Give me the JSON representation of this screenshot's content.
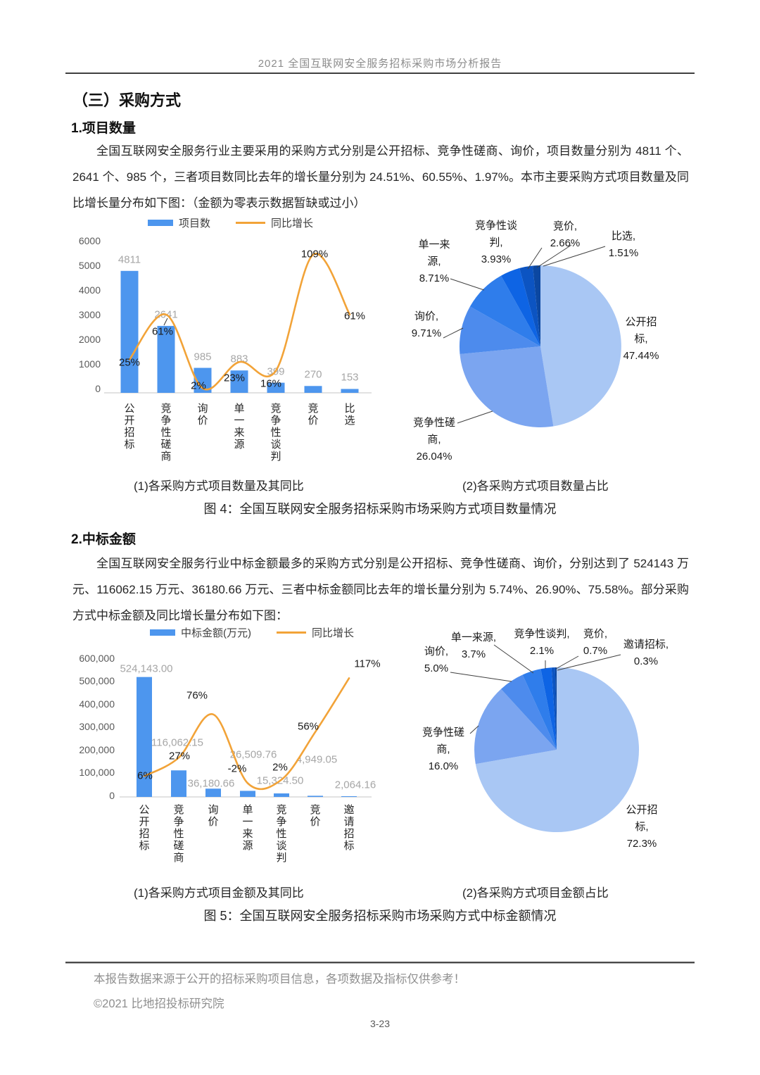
{
  "page": {
    "header_title": "2021 全国互联网安全服务招标采购市场分析报告",
    "footer_note": "本报告数据来源于公开的招标采购项目信息，各项数据及指标仅供参考！",
    "footer_copyright": "©2021 比地招投标研究院",
    "page_number": "3-23"
  },
  "section": {
    "title": "（三）采购方式",
    "sub1": {
      "heading": "1.项目数量",
      "paragraph": "全国互联网安全服务行业主要采用的采购方式分别是公开招标、竞争性磋商、询价，项目数量分别为 4811 个、2641 个、985 个，三者项目数同比去年的增长量分别为 24.51%、60.55%、1.97%。本市主要采购方式项目数量及同比增长量分布如下图：（金额为零表示数据暂缺或过小）",
      "caption_left": "(1)各采购方式项目数量及其同比",
      "caption_right": "(2)各采购方式项目数量占比",
      "figure_caption": "图 4：全国互联网安全服务招标采购市场采购方式项目数量情况"
    },
    "sub2": {
      "heading": "2.中标金额",
      "paragraph": "全国互联网安全服务行业中标金额最多的采购方式分别是公开招标、竞争性磋商、询价，分别达到了 524143 万元、116062.15 万元、36180.66 万元、三者中标金额同比去年的增长量分别为 5.74%、26.90%、75.58%。部分采购方式中标金额及同比增长量分布如下图：",
      "caption_left": "(1)各采购方式项目金额及其同比",
      "caption_right": "(2)各采购方式项目金额占比",
      "figure_caption": "图 5：全国互联网安全服务招标采购市场采购方式中标金额情况"
    }
  },
  "colors": {
    "bar_blue": "#4D96EE",
    "line_orange": "#F2A338",
    "value_label_gray": "#A6A6A6",
    "pie_palette": [
      "#A9C7F4",
      "#7BA5F0",
      "#4D8BED",
      "#2F7DEB",
      "#0E64E4",
      "#0C54C2",
      "#0B47A1"
    ]
  },
  "chart_data": [
    {
      "id": "fig4-bar",
      "type": "bar",
      "title": "(1)各采购方式项目数量及其同比",
      "categories": [
        "公开招标",
        "竞争性磋商",
        "询价",
        "单一来源",
        "竞争性谈判",
        "竞价",
        "比选"
      ],
      "series": [
        {
          "name": "项目数",
          "type": "bar",
          "values": [
            4811,
            2641,
            985,
            883,
            399,
            270,
            153
          ],
          "data_labels": [
            "4811",
            "2641",
            "985",
            "883",
            "399",
            "270",
            "153"
          ]
        },
        {
          "name": "同比增长",
          "type": "line",
          "values": [
            25,
            61,
            2,
            23,
            16,
            109,
            61
          ],
          "data_labels": [
            "25%",
            "61%",
            "2%",
            "23%",
            "16%",
            "109%",
            "61%"
          ]
        }
      ],
      "ylim": [
        0,
        6000
      ],
      "ytick_labels": [
        "0",
        "1000",
        "2000",
        "3000",
        "4000",
        "5000",
        "6000"
      ],
      "legend_position": "top",
      "grid": false
    },
    {
      "id": "fig4-pie",
      "type": "pie",
      "title": "(2)各采购方式项目数量占比",
      "labels": [
        "公开招标",
        "竞争性磋商",
        "询价",
        "单一来源",
        "竞争性谈判",
        "竞价",
        "比选"
      ],
      "values": [
        47.44,
        26.04,
        9.71,
        8.71,
        3.93,
        2.66,
        1.51
      ],
      "pct_labels": [
        "47.44%",
        "26.04%",
        "9.71%",
        "8.71%",
        "3.93%",
        "2.66%",
        "1.51%"
      ]
    },
    {
      "id": "fig5-bar",
      "type": "bar",
      "title": "(1)各采购方式项目金额及其同比",
      "categories": [
        "公开招标",
        "竞争性磋商",
        "询价",
        "单一来源",
        "竞争性谈判",
        "竞价",
        "邀请招标"
      ],
      "series": [
        {
          "name": "中标金额(万元)",
          "type": "bar",
          "values": [
            524143.0,
            116062.15,
            36180.66,
            26509.76,
            15324.5,
            4949.05,
            2064.16
          ],
          "data_labels": [
            "524,143.00",
            "116,062.15",
            "36,180.66",
            "26,509.76",
            "15,324.50",
            "4,949.05",
            "2,064.16"
          ]
        },
        {
          "name": "同比增长",
          "type": "line",
          "values": [
            6,
            27,
            76,
            -2,
            2,
            56,
            117
          ],
          "data_labels": [
            "6%",
            "27%",
            "76%",
            "-2%",
            "2%",
            "56%",
            "117%"
          ]
        }
      ],
      "ylim": [
        0,
        600000
      ],
      "ytick_labels": [
        "0",
        "100,000",
        "200,000",
        "300,000",
        "400,000",
        "500,000",
        "600,000"
      ],
      "legend_position": "top",
      "grid": false
    },
    {
      "id": "fig5-pie",
      "type": "pie",
      "title": "(2)各采购方式项目金额占比",
      "labels": [
        "公开招标",
        "竞争性磋商",
        "询价",
        "单一来源",
        "竞争性谈判",
        "竞价",
        "邀请招标"
      ],
      "values": [
        72.3,
        16.0,
        5.0,
        3.7,
        2.1,
        0.7,
        0.3
      ],
      "pct_labels": [
        "72.3%",
        "16.0%",
        "5.0%",
        "3.7%",
        "2.1%",
        "0.7%",
        "0.3%"
      ]
    }
  ]
}
